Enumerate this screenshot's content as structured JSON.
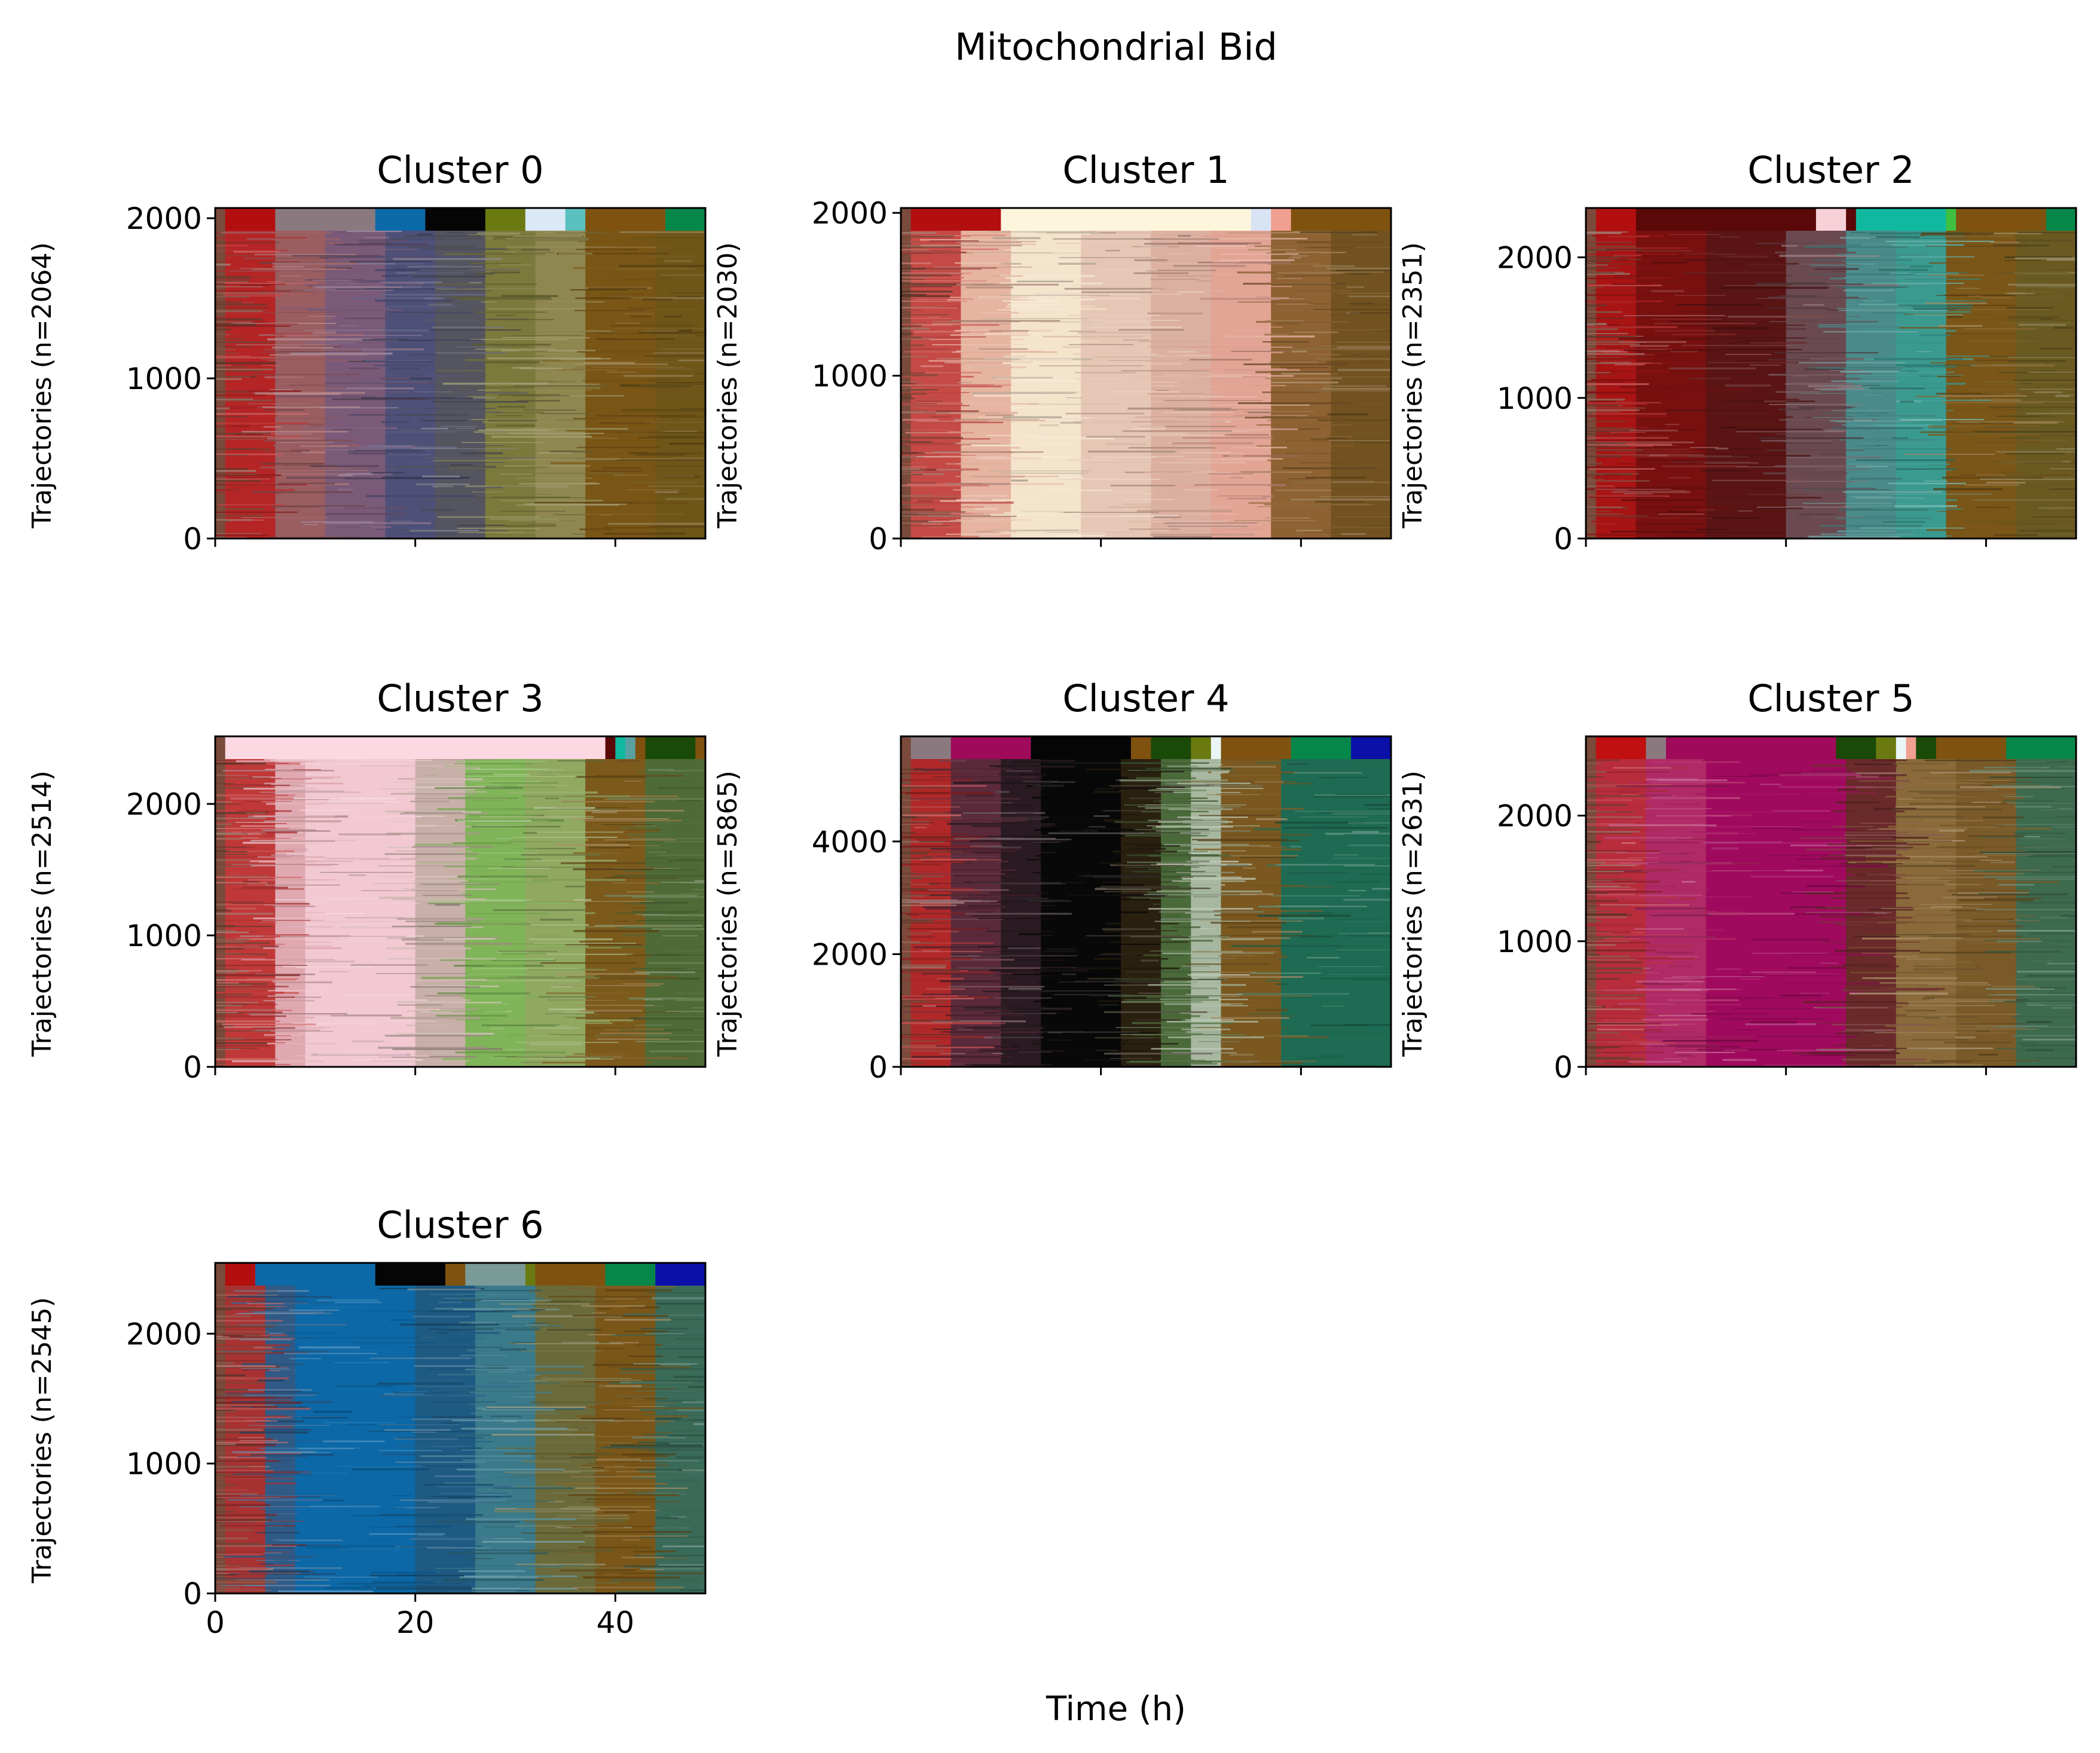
{
  "figure": {
    "title": "Mitochondrial Bid",
    "xlabel": "Time (h)"
  },
  "chart_data": [
    {
      "type": "heatmap",
      "title": "Cluster 0",
      "ylabel": "Trajectories (n=2064)",
      "n": 2064,
      "xlim": [
        0,
        49
      ],
      "ylim": [
        0,
        2064
      ],
      "xticks": [
        0,
        20,
        40
      ],
      "yticks": [
        0,
        1000,
        2000
      ],
      "show_xticklabels": false,
      "top_bar": [
        {
          "from": 0,
          "to": 1,
          "color": "#7a4a3a"
        },
        {
          "from": 1,
          "to": 6,
          "color": "#b40f0f"
        },
        {
          "from": 6,
          "to": 16,
          "color": "#8a7a80"
        },
        {
          "from": 16,
          "to": 21,
          "color": "#0d6aa8"
        },
        {
          "from": 21,
          "to": 27,
          "color": "#050505"
        },
        {
          "from": 27,
          "to": 31,
          "color": "#6b7a10"
        },
        {
          "from": 31,
          "to": 35,
          "color": "#dbe8f6"
        },
        {
          "from": 35,
          "to": 37,
          "color": "#5ac0c0"
        },
        {
          "from": 37,
          "to": 45,
          "color": "#7f5210"
        },
        {
          "from": 45,
          "to": 49,
          "color": "#06874a"
        }
      ],
      "body_bands": [
        {
          "from": 0,
          "to": 1,
          "color": "#7a4a3a"
        },
        {
          "from": 1,
          "to": 6,
          "color": "#b52525"
        },
        {
          "from": 6,
          "to": 11,
          "color": "#9a5d60"
        },
        {
          "from": 11,
          "to": 17,
          "color": "#7a5a78"
        },
        {
          "from": 17,
          "to": 22,
          "color": "#4f5078"
        },
        {
          "from": 22,
          "to": 27,
          "color": "#555560"
        },
        {
          "from": 27,
          "to": 32,
          "color": "#7b7a3c"
        },
        {
          "from": 32,
          "to": 37,
          "color": "#8f8750"
        },
        {
          "from": 37,
          "to": 44,
          "color": "#7a5616"
        },
        {
          "from": 44,
          "to": 49,
          "color": "#6e5518"
        }
      ]
    },
    {
      "type": "heatmap",
      "title": "Cluster 1",
      "ylabel": "Trajectories (n=2030)",
      "n": 2030,
      "xlim": [
        0,
        49
      ],
      "ylim": [
        0,
        2030
      ],
      "xticks": [
        0,
        20,
        40
      ],
      "yticks": [
        0,
        1000,
        2000
      ],
      "show_xticklabels": false,
      "top_bar": [
        {
          "from": 0,
          "to": 1,
          "color": "#7a4a3a"
        },
        {
          "from": 1,
          "to": 10,
          "color": "#b40f0f"
        },
        {
          "from": 10,
          "to": 35,
          "color": "#fdf6dc"
        },
        {
          "from": 35,
          "to": 37,
          "color": "#d8e4f4"
        },
        {
          "from": 37,
          "to": 39,
          "color": "#f0a090"
        },
        {
          "from": 39,
          "to": 49,
          "color": "#7f5210"
        }
      ],
      "body_bands": [
        {
          "from": 0,
          "to": 1,
          "color": "#7a4a3a"
        },
        {
          "from": 1,
          "to": 6,
          "color": "#c54a45"
        },
        {
          "from": 6,
          "to": 11,
          "color": "#e6b4a0"
        },
        {
          "from": 11,
          "to": 18,
          "color": "#f4e4cc"
        },
        {
          "from": 18,
          "to": 25,
          "color": "#e6c6b4"
        },
        {
          "from": 25,
          "to": 31,
          "color": "#dcb0a0"
        },
        {
          "from": 31,
          "to": 37,
          "color": "#e2a494"
        },
        {
          "from": 37,
          "to": 43,
          "color": "#8e6232"
        },
        {
          "from": 43,
          "to": 49,
          "color": "#725220"
        }
      ]
    },
    {
      "type": "heatmap",
      "title": "Cluster 2",
      "ylabel": "Trajectories (n=2351)",
      "n": 2351,
      "xlim": [
        0,
        49
      ],
      "ylim": [
        0,
        2351
      ],
      "xticks": [
        0,
        20,
        40
      ],
      "yticks": [
        0,
        1000,
        2000
      ],
      "show_xticklabels": false,
      "top_bar": [
        {
          "from": 0,
          "to": 1,
          "color": "#7a4a3a"
        },
        {
          "from": 1,
          "to": 5,
          "color": "#b40f0f"
        },
        {
          "from": 5,
          "to": 23,
          "color": "#5a0808"
        },
        {
          "from": 23,
          "to": 26,
          "color": "#f8d0d8"
        },
        {
          "from": 26,
          "to": 27,
          "color": "#5a0808"
        },
        {
          "from": 27,
          "to": 36,
          "color": "#10b8a0"
        },
        {
          "from": 36,
          "to": 37,
          "color": "#40c040"
        },
        {
          "from": 37,
          "to": 46,
          "color": "#7f5210"
        },
        {
          "from": 46,
          "to": 49,
          "color": "#06874a"
        }
      ],
      "body_bands": [
        {
          "from": 0,
          "to": 1,
          "color": "#7a4a3a"
        },
        {
          "from": 1,
          "to": 5,
          "color": "#a81414"
        },
        {
          "from": 5,
          "to": 12,
          "color": "#781010"
        },
        {
          "from": 12,
          "to": 20,
          "color": "#5a1414"
        },
        {
          "from": 20,
          "to": 26,
          "color": "#6a4a50"
        },
        {
          "from": 26,
          "to": 31,
          "color": "#4a8a8a"
        },
        {
          "from": 31,
          "to": 36,
          "color": "#3a9a90"
        },
        {
          "from": 36,
          "to": 43,
          "color": "#7a5618"
        },
        {
          "from": 43,
          "to": 49,
          "color": "#6a5a22"
        }
      ]
    },
    {
      "type": "heatmap",
      "title": "Cluster 3",
      "ylabel": "Trajectories (n=2514)",
      "n": 2514,
      "xlim": [
        0,
        49
      ],
      "ylim": [
        0,
        2514
      ],
      "xticks": [
        0,
        20,
        40
      ],
      "yticks": [
        0,
        1000,
        2000
      ],
      "show_xticklabels": false,
      "top_bar": [
        {
          "from": 0,
          "to": 1,
          "color": "#7a4a3a"
        },
        {
          "from": 1,
          "to": 39,
          "color": "#fcd8e2"
        },
        {
          "from": 39,
          "to": 40,
          "color": "#5a0808"
        },
        {
          "from": 40,
          "to": 41,
          "color": "#10b8a0"
        },
        {
          "from": 41,
          "to": 42,
          "color": "#5aa0a0"
        },
        {
          "from": 42,
          "to": 43,
          "color": "#7f5210"
        },
        {
          "from": 43,
          "to": 48,
          "color": "#1a4a08"
        },
        {
          "from": 48,
          "to": 49,
          "color": "#7f5210"
        }
      ],
      "body_bands": [
        {
          "from": 0,
          "to": 1,
          "color": "#7a4a3a"
        },
        {
          "from": 1,
          "to": 6,
          "color": "#c03838"
        },
        {
          "from": 6,
          "to": 9,
          "color": "#e0a8b0"
        },
        {
          "from": 9,
          "to": 20,
          "color": "#f2c8d2"
        },
        {
          "from": 20,
          "to": 25,
          "color": "#c8b0a8"
        },
        {
          "from": 25,
          "to": 31,
          "color": "#80b458"
        },
        {
          "from": 31,
          "to": 37,
          "color": "#90a860"
        },
        {
          "from": 37,
          "to": 43,
          "color": "#7c5a1c"
        },
        {
          "from": 43,
          "to": 49,
          "color": "#4e6a36"
        }
      ]
    },
    {
      "type": "heatmap",
      "title": "Cluster 4",
      "ylabel": "Trajectories (n=5865)",
      "n": 5865,
      "xlim": [
        0,
        49
      ],
      "ylim": [
        0,
        5865
      ],
      "xticks": [
        0,
        20,
        40
      ],
      "yticks": [
        0,
        2000,
        4000
      ],
      "show_xticklabels": false,
      "top_bar": [
        {
          "from": 0,
          "to": 1,
          "color": "#7a4a3a"
        },
        {
          "from": 1,
          "to": 5,
          "color": "#8a7a80"
        },
        {
          "from": 5,
          "to": 13,
          "color": "#a00a5a"
        },
        {
          "from": 13,
          "to": 23,
          "color": "#050505"
        },
        {
          "from": 23,
          "to": 25,
          "color": "#7f5210"
        },
        {
          "from": 25,
          "to": 29,
          "color": "#1a4a08"
        },
        {
          "from": 29,
          "to": 31,
          "color": "#6b7a10"
        },
        {
          "from": 31,
          "to": 32,
          "color": "#eaf6f6"
        },
        {
          "from": 32,
          "to": 39,
          "color": "#7f5210"
        },
        {
          "from": 39,
          "to": 45,
          "color": "#06874a"
        },
        {
          "from": 45,
          "to": 49,
          "color": "#0a10a8"
        }
      ],
      "body_bands": [
        {
          "from": 0,
          "to": 1,
          "color": "#7a4a3a"
        },
        {
          "from": 1,
          "to": 5,
          "color": "#b02828"
        },
        {
          "from": 5,
          "to": 10,
          "color": "#5a2a3a"
        },
        {
          "from": 10,
          "to": 14,
          "color": "#2a1a22"
        },
        {
          "from": 14,
          "to": 22,
          "color": "#080808"
        },
        {
          "from": 22,
          "to": 26,
          "color": "#2a2010"
        },
        {
          "from": 26,
          "to": 29,
          "color": "#4a6a3a"
        },
        {
          "from": 29,
          "to": 32,
          "color": "#a8b8a0"
        },
        {
          "from": 32,
          "to": 38,
          "color": "#7a5820"
        },
        {
          "from": 38,
          "to": 49,
          "color": "#1e6a52"
        }
      ]
    },
    {
      "type": "heatmap",
      "title": "Cluster 5",
      "ylabel": "Trajectories (n=2631)",
      "n": 2631,
      "xlim": [
        0,
        49
      ],
      "ylim": [
        0,
        2631
      ],
      "xticks": [
        0,
        20,
        40
      ],
      "yticks": [
        0,
        1000,
        2000
      ],
      "show_xticklabels": false,
      "top_bar": [
        {
          "from": 0,
          "to": 1,
          "color": "#7a4a3a"
        },
        {
          "from": 1,
          "to": 6,
          "color": "#c01010"
        },
        {
          "from": 6,
          "to": 8,
          "color": "#8a7a80"
        },
        {
          "from": 8,
          "to": 25,
          "color": "#a00a5a"
        },
        {
          "from": 25,
          "to": 29,
          "color": "#1a4a08"
        },
        {
          "from": 29,
          "to": 31,
          "color": "#6b7a10"
        },
        {
          "from": 31,
          "to": 32,
          "color": "#eaf6f6"
        },
        {
          "from": 32,
          "to": 33,
          "color": "#f0a090"
        },
        {
          "from": 33,
          "to": 35,
          "color": "#1a4a08"
        },
        {
          "from": 35,
          "to": 42,
          "color": "#7f5210"
        },
        {
          "from": 42,
          "to": 49,
          "color": "#06874a"
        }
      ],
      "body_bands": [
        {
          "from": 0,
          "to": 1,
          "color": "#7a4a3a"
        },
        {
          "from": 1,
          "to": 6,
          "color": "#b82c3c"
        },
        {
          "from": 6,
          "to": 12,
          "color": "#b02a66"
        },
        {
          "from": 12,
          "to": 26,
          "color": "#a00a5e"
        },
        {
          "from": 26,
          "to": 31,
          "color": "#6a2a2a"
        },
        {
          "from": 31,
          "to": 37,
          "color": "#8a6a3a"
        },
        {
          "from": 37,
          "to": 43,
          "color": "#7a5a28"
        },
        {
          "from": 43,
          "to": 49,
          "color": "#3e6a4e"
        }
      ]
    },
    {
      "type": "heatmap",
      "title": "Cluster 6",
      "ylabel": "Trajectories (n=2545)",
      "n": 2545,
      "xlim": [
        0,
        49
      ],
      "ylim": [
        0,
        2545
      ],
      "xticks": [
        0,
        20,
        40
      ],
      "yticks": [
        0,
        1000,
        2000
      ],
      "show_xticklabels": true,
      "top_bar": [
        {
          "from": 0,
          "to": 1,
          "color": "#7a4a3a"
        },
        {
          "from": 1,
          "to": 4,
          "color": "#b40f0f"
        },
        {
          "from": 4,
          "to": 16,
          "color": "#0d6aa8"
        },
        {
          "from": 16,
          "to": 23,
          "color": "#050505"
        },
        {
          "from": 23,
          "to": 25,
          "color": "#7f5210"
        },
        {
          "from": 25,
          "to": 31,
          "color": "#7a9a98"
        },
        {
          "from": 31,
          "to": 32,
          "color": "#6b7a10"
        },
        {
          "from": 32,
          "to": 39,
          "color": "#7f5210"
        },
        {
          "from": 39,
          "to": 44,
          "color": "#06874a"
        },
        {
          "from": 44,
          "to": 49,
          "color": "#0a10a8"
        }
      ],
      "body_bands": [
        {
          "from": 0,
          "to": 1,
          "color": "#7a4a3a"
        },
        {
          "from": 1,
          "to": 5,
          "color": "#a83232"
        },
        {
          "from": 5,
          "to": 8,
          "color": "#305a86"
        },
        {
          "from": 8,
          "to": 20,
          "color": "#0c68a6"
        },
        {
          "from": 20,
          "to": 26,
          "color": "#1e5a82"
        },
        {
          "from": 26,
          "to": 32,
          "color": "#3a7a8a"
        },
        {
          "from": 32,
          "to": 38,
          "color": "#6a6a3a"
        },
        {
          "from": 38,
          "to": 44,
          "color": "#7a5618"
        },
        {
          "from": 44,
          "to": 49,
          "color": "#3a6a58"
        }
      ]
    }
  ]
}
